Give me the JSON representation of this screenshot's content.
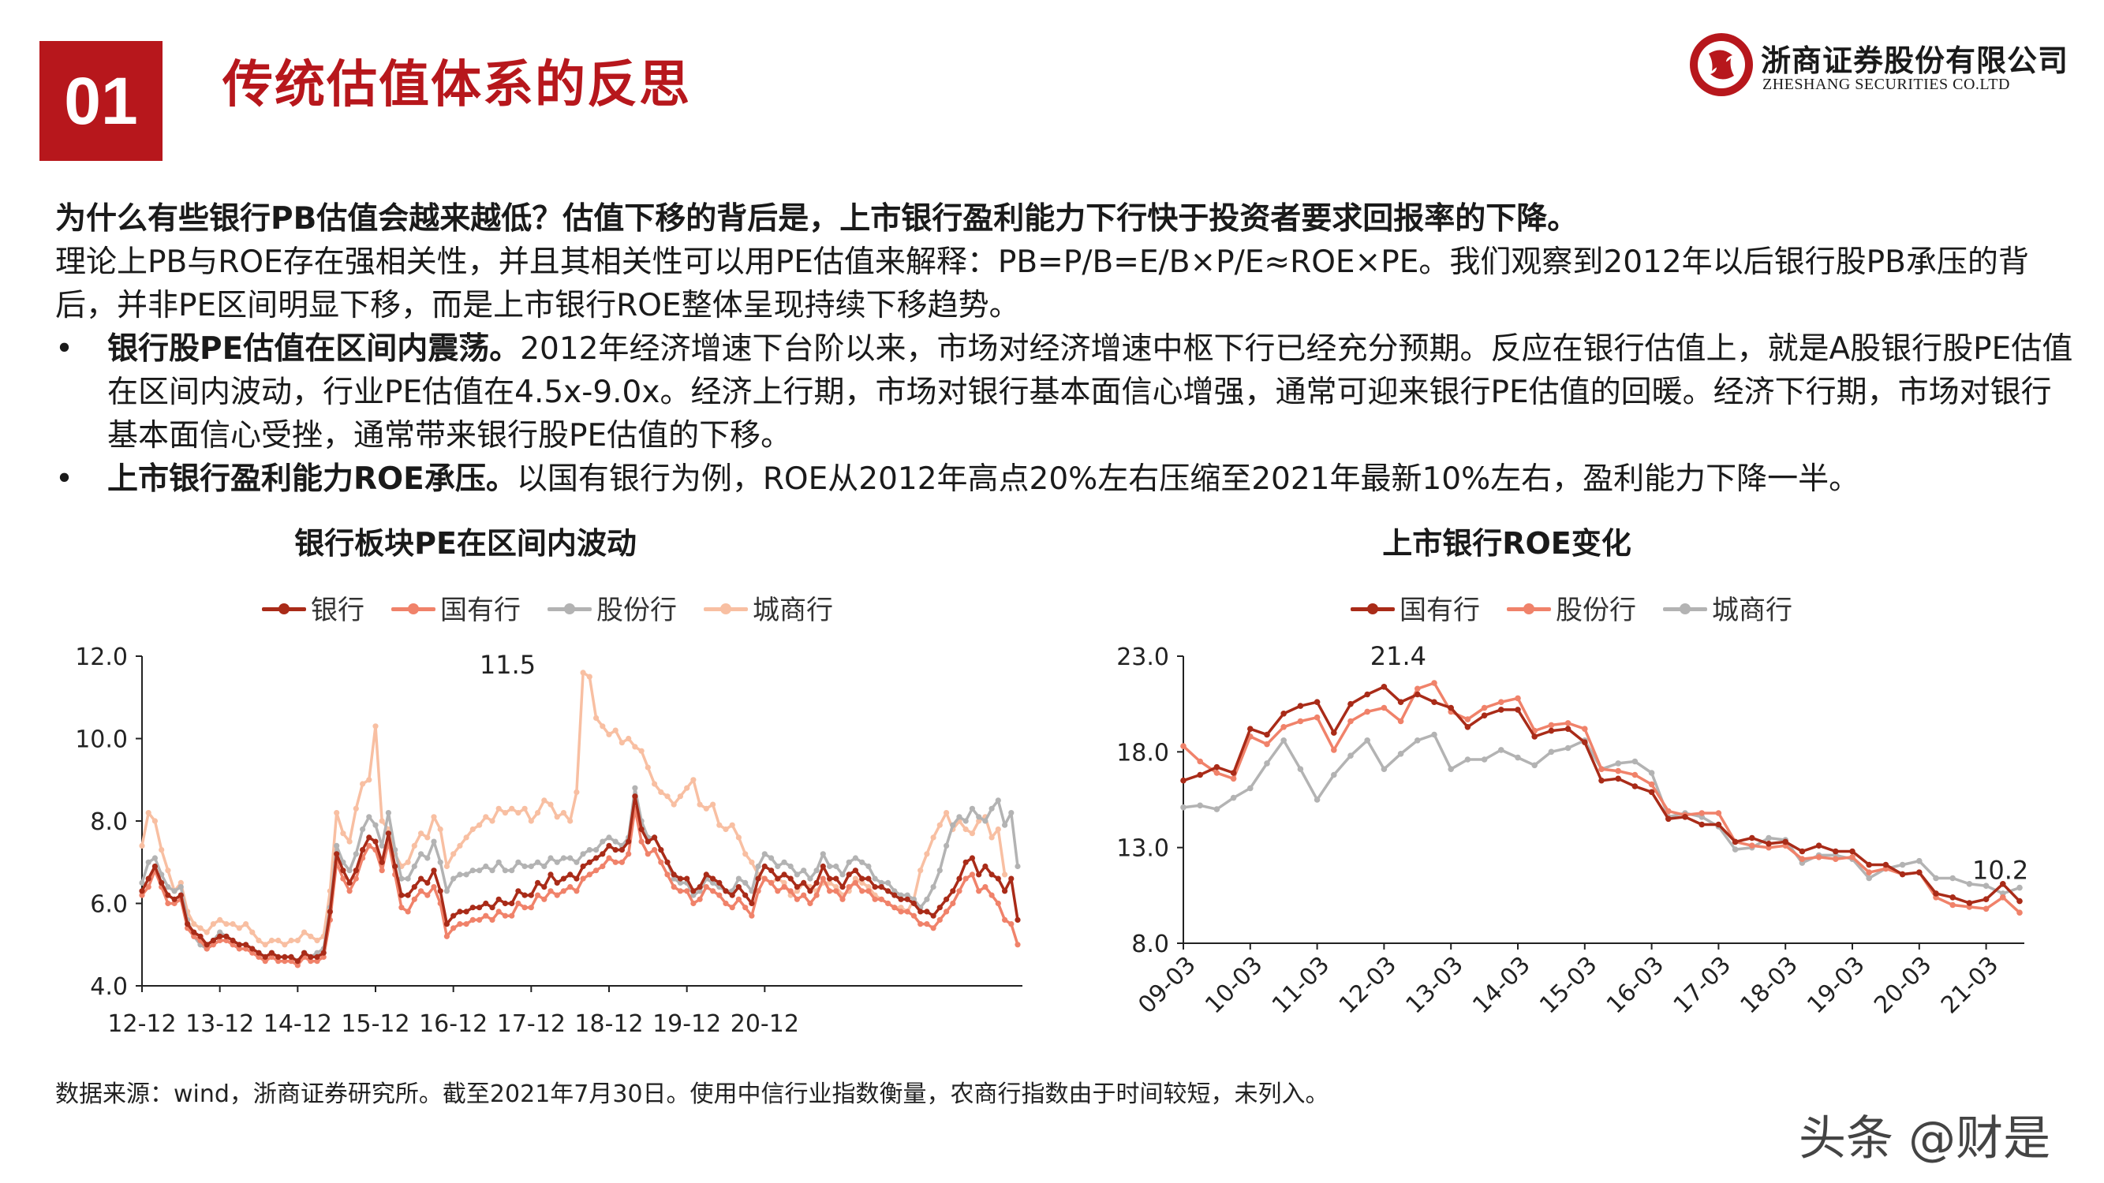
{
  "header": {
    "section_number": "01",
    "title": "传统估值体系的反思",
    "brand_color": "#b7171c"
  },
  "logo": {
    "company_cn": "浙商证券股份有限公司",
    "company_en": "ZHESHANG SECURITIES CO.LTD"
  },
  "body": {
    "lead": "为什么有些银行PB估值会越来越低？估值下移的背后是，上市银行盈利能力下行快于投资者要求回报率的下降。",
    "paragraph": "理论上PB与ROE存在强相关性，并且其相关性可以用PE估值来解释：PB=P/B=E/B×P/E≈ROE×PE。我们观察到2012年以后银行股PB承压的背后，并非PE区间明显下移，而是上市银行ROE整体呈现持续下移趋势。",
    "bullets": [
      {
        "marker": "•",
        "heading": "银行股PE估值在区间内震荡。",
        "text": "2012年经济增速下台阶以来，市场对经济增速中枢下行已经充分预期。反应在银行估值上，就是A股银行股PE估值在区间内波动，行业PE估值在4.5x-9.0x。经济上行期，市场对银行基本面信心增强，通常可迎来银行PE估值的回暖。经济下行期，市场对银行基本面信心受挫，通常带来银行股PE估值的下移。"
      },
      {
        "marker": "•",
        "heading": "上市银行盈利能力ROE承压。",
        "text": "以国有银行为例，ROE从2012年高点20%左右压缩至2021年最新10%左右，盈利能力下降一半。"
      }
    ]
  },
  "chart_data": [
    {
      "type": "line",
      "title": "银行板块PE在区间内波动",
      "xlabel": "",
      "ylabel": "",
      "ylim": [
        4.0,
        12.0
      ],
      "yticks": [
        "4.0",
        "6.0",
        "8.0",
        "10.0",
        "12.0"
      ],
      "xticks": [
        "12-12",
        "13-12",
        "14-12",
        "15-12",
        "16-12",
        "17-12",
        "18-12",
        "19-12",
        "20-12"
      ],
      "x_start": 2012.917,
      "x_step_years": 0.08333,
      "grid": false,
      "legend_position": "top",
      "annotations": [
        {
          "label": "11.5",
          "series": "城商行",
          "x": 2017.25,
          "y": 11.5
        }
      ],
      "series": [
        {
          "name": "银行",
          "color": "#a92b18",
          "values": [
            6.3,
            6.6,
            6.9,
            6.5,
            6.2,
            6.1,
            6.2,
            5.5,
            5.3,
            5.2,
            5.0,
            5.1,
            5.2,
            5.2,
            5.1,
            5.0,
            5.0,
            4.9,
            4.8,
            4.7,
            4.8,
            4.7,
            4.7,
            4.7,
            4.6,
            4.8,
            4.7,
            4.7,
            4.8,
            5.8,
            7.2,
            6.8,
            6.5,
            6.8,
            7.3,
            7.6,
            7.5,
            7.0,
            7.7,
            6.9,
            6.2,
            6.2,
            6.4,
            6.6,
            6.5,
            6.8,
            6.3,
            5.5,
            5.7,
            5.8,
            5.8,
            5.9,
            5.9,
            6.0,
            5.9,
            6.1,
            6.0,
            6.0,
            6.3,
            6.2,
            6.2,
            6.5,
            6.4,
            6.7,
            6.5,
            6.6,
            6.7,
            6.6,
            6.9,
            7.0,
            7.1,
            7.2,
            7.4,
            7.3,
            7.3,
            7.5,
            8.6,
            7.8,
            7.5,
            7.6,
            7.3,
            7.0,
            6.7,
            6.6,
            6.6,
            6.3,
            6.4,
            6.7,
            6.6,
            6.5,
            6.3,
            6.2,
            6.4,
            6.2,
            6.0,
            6.6,
            6.9,
            6.8,
            6.6,
            6.7,
            6.6,
            6.4,
            6.5,
            6.3,
            6.5,
            6.9,
            6.6,
            6.6,
            6.4,
            6.7,
            6.8,
            6.6,
            6.6,
            6.4,
            6.4,
            6.3,
            6.2,
            6.1,
            6.1,
            6.0,
            5.8,
            5.8,
            5.7,
            5.9,
            6.1,
            6.3,
            6.6,
            7.0,
            7.1,
            6.7,
            6.9,
            6.7,
            6.6,
            6.3,
            6.6,
            5.6
          ]
        },
        {
          "name": "国有行",
          "color": "#f0826a",
          "values": [
            6.2,
            6.4,
            6.8,
            6.4,
            6.0,
            6.0,
            6.1,
            5.4,
            5.2,
            5.1,
            4.9,
            5.0,
            5.1,
            5.1,
            5.0,
            4.9,
            4.9,
            4.8,
            4.7,
            4.6,
            4.7,
            4.6,
            4.6,
            4.6,
            4.5,
            4.7,
            4.6,
            4.6,
            4.7,
            5.6,
            7.0,
            6.6,
            6.3,
            6.6,
            7.1,
            7.4,
            7.3,
            6.8,
            7.5,
            6.7,
            5.9,
            5.8,
            6.1,
            6.3,
            6.2,
            6.4,
            6.0,
            5.2,
            5.4,
            5.5,
            5.5,
            5.6,
            5.6,
            5.7,
            5.6,
            5.8,
            5.7,
            5.7,
            6.0,
            5.9,
            5.9,
            6.2,
            6.1,
            6.3,
            6.2,
            6.3,
            6.4,
            6.3,
            6.6,
            6.7,
            6.8,
            6.9,
            7.1,
            7.0,
            7.0,
            7.2,
            8.3,
            7.5,
            7.2,
            7.3,
            7.0,
            6.7,
            6.4,
            6.3,
            6.3,
            6.0,
            6.1,
            6.4,
            6.3,
            6.2,
            6.0,
            5.9,
            6.1,
            5.9,
            5.7,
            6.3,
            6.6,
            6.5,
            6.3,
            6.4,
            6.3,
            6.1,
            6.2,
            6.0,
            6.2,
            6.6,
            6.3,
            6.3,
            6.1,
            6.4,
            6.5,
            6.3,
            6.3,
            6.1,
            6.1,
            6.0,
            5.9,
            5.8,
            5.8,
            5.7,
            5.5,
            5.5,
            5.4,
            5.6,
            5.8,
            6.0,
            6.3,
            6.6,
            6.7,
            6.3,
            6.4,
            6.2,
            6.0,
            5.6,
            5.5,
            5.0
          ]
        },
        {
          "name": "股份行",
          "color": "#b3b3b3",
          "values": [
            6.5,
            7.0,
            7.1,
            6.7,
            6.4,
            6.3,
            6.4,
            5.6,
            5.2,
            5.0,
            4.9,
            5.1,
            5.3,
            5.2,
            5.1,
            5.0,
            5.0,
            4.9,
            4.8,
            4.7,
            4.8,
            4.7,
            4.7,
            4.7,
            4.6,
            4.8,
            4.7,
            4.8,
            4.9,
            5.9,
            7.4,
            7.0,
            6.8,
            7.2,
            7.8,
            8.1,
            7.9,
            7.4,
            8.2,
            7.3,
            6.6,
            6.6,
            6.9,
            7.2,
            7.1,
            7.5,
            7.0,
            6.3,
            6.6,
            6.7,
            6.7,
            6.8,
            6.8,
            6.9,
            6.8,
            7.0,
            6.8,
            6.8,
            7.0,
            6.9,
            6.9,
            7.0,
            6.9,
            7.1,
            7.0,
            7.1,
            7.1,
            7.0,
            7.2,
            7.3,
            7.3,
            7.5,
            7.6,
            7.5,
            7.4,
            7.6,
            8.8,
            8.0,
            7.6,
            7.6,
            7.3,
            7.0,
            6.6,
            6.5,
            6.5,
            6.2,
            6.3,
            6.6,
            6.5,
            6.4,
            6.3,
            6.3,
            6.6,
            6.5,
            6.3,
            6.9,
            7.2,
            7.1,
            6.9,
            7.0,
            6.9,
            6.7,
            6.8,
            6.6,
            6.8,
            7.2,
            6.9,
            6.9,
            6.7,
            7.0,
            7.1,
            7.0,
            6.9,
            6.6,
            6.5,
            6.5,
            6.3,
            6.2,
            6.2,
            6.1,
            5.9,
            6.1,
            6.4,
            6.8,
            7.4,
            7.9,
            8.1,
            8.0,
            8.3,
            8.1,
            8.0,
            8.3,
            8.5,
            7.9,
            8.2,
            6.9
          ]
        },
        {
          "name": "城商行",
          "color": "#f8bfa2",
          "values": [
            7.4,
            8.2,
            8.0,
            7.3,
            6.8,
            6.3,
            6.5,
            5.8,
            5.5,
            5.4,
            5.3,
            5.5,
            5.6,
            5.5,
            5.5,
            5.4,
            5.5,
            5.3,
            5.1,
            5.0,
            5.1,
            5.1,
            5.0,
            5.1,
            5.1,
            5.3,
            5.2,
            5.1,
            5.2,
            6.3,
            8.2,
            7.7,
            7.5,
            8.3,
            8.9,
            9.0,
            10.3,
            8.0,
            7.8,
            7.2,
            6.9,
            7.0,
            7.4,
            7.7,
            7.6,
            8.1,
            7.8,
            6.9,
            7.2,
            7.4,
            7.6,
            7.8,
            7.9,
            8.1,
            8.0,
            8.3,
            8.2,
            8.3,
            8.2,
            8.3,
            8.0,
            8.2,
            8.5,
            8.4,
            8.1,
            8.2,
            8.0,
            8.7,
            11.6,
            11.5,
            10.5,
            10.3,
            10.1,
            10.2,
            9.9,
            10.0,
            9.8,
            9.7,
            9.3,
            8.9,
            8.7,
            8.6,
            8.4,
            8.6,
            8.8,
            9.0,
            8.4,
            8.3,
            8.4,
            7.9,
            7.8,
            7.9,
            7.6,
            7.2,
            7.0,
            6.7,
            6.6,
            6.5,
            6.6,
            6.5,
            6.2,
            6.3,
            6.5,
            6.4,
            6.3,
            6.5,
            6.5,
            6.4,
            6.2,
            6.3,
            6.6,
            6.5,
            6.4,
            6.2,
            6.1,
            6.0,
            5.9,
            5.9,
            5.8,
            6.1,
            6.8,
            7.2,
            7.6,
            7.9,
            8.2,
            7.8,
            8.0,
            7.8,
            7.7,
            8.0,
            8.1,
            7.6,
            7.8,
            6.7
          ]
        }
      ]
    },
    {
      "type": "line",
      "title": "上市银行ROE变化",
      "xlabel": "",
      "ylabel": "",
      "ylim": [
        8.0,
        23.0
      ],
      "yticks": [
        "8.0",
        "13.0",
        "18.0",
        "23.0"
      ],
      "xticks": [
        "09-03",
        "10-03",
        "11-03",
        "12-03",
        "13-03",
        "14-03",
        "15-03",
        "16-03",
        "17-03",
        "18-03",
        "19-03",
        "20-03",
        "21-03"
      ],
      "x_start": 2009.0,
      "x_step_years": 0.25,
      "grid": false,
      "legend_position": "top",
      "annotations": [
        {
          "label": "21.4",
          "series": "国有行",
          "x": 2012.0,
          "y": 21.4
        },
        {
          "label": "10.2",
          "series": "国有行",
          "x": 2021.0,
          "y": 10.2
        }
      ],
      "series": [
        {
          "name": "国有行",
          "color": "#a92b18",
          "values": [
            16.5,
            16.8,
            17.2,
            16.9,
            19.2,
            18.9,
            20.0,
            20.4,
            20.6,
            19.0,
            20.5,
            21.0,
            21.4,
            20.6,
            21.0,
            20.6,
            20.3,
            19.3,
            19.9,
            20.2,
            20.2,
            18.8,
            19.1,
            19.2,
            18.5,
            16.5,
            16.6,
            16.2,
            15.9,
            14.5,
            14.6,
            14.2,
            14.2,
            13.3,
            13.5,
            13.2,
            13.3,
            12.8,
            13.1,
            12.8,
            12.8,
            12.1,
            12.1,
            11.6,
            11.7,
            10.6,
            10.4,
            10.1,
            10.3,
            11.1,
            10.2
          ]
        },
        {
          "name": "股份行",
          "color": "#f0826a",
          "values": [
            18.3,
            17.5,
            16.9,
            16.6,
            18.8,
            18.4,
            19.3,
            19.6,
            19.8,
            18.1,
            19.6,
            20.1,
            20.3,
            19.6,
            21.3,
            21.6,
            20.1,
            19.7,
            20.3,
            20.6,
            20.8,
            19.1,
            19.4,
            19.5,
            19.2,
            17.1,
            17.0,
            16.8,
            16.3,
            14.9,
            14.7,
            14.8,
            14.8,
            13.3,
            13.1,
            13.0,
            13.1,
            12.4,
            12.5,
            12.4,
            12.5,
            11.7,
            11.9,
            11.6,
            11.7,
            10.4,
            10.0,
            9.9,
            9.8,
            10.4,
            9.6
          ]
        },
        {
          "name": "城商行",
          "color": "#b3b3b3",
          "values": [
            15.1,
            15.2,
            15.0,
            15.6,
            16.1,
            17.4,
            18.6,
            17.1,
            15.5,
            16.8,
            17.8,
            18.6,
            17.1,
            17.9,
            18.6,
            18.9,
            17.1,
            17.6,
            17.6,
            18.1,
            17.7,
            17.3,
            18.0,
            18.2,
            18.6,
            17.1,
            17.4,
            17.5,
            16.9,
            14.6,
            14.8,
            14.6,
            14.1,
            12.9,
            13.0,
            13.5,
            13.4,
            12.2,
            12.6,
            12.6,
            12.4,
            11.4,
            11.9,
            12.1,
            12.3,
            11.4,
            11.4,
            11.1,
            11.0,
            10.6,
            10.9
          ]
        }
      ]
    }
  ],
  "footnote": "数据来源：wind，浙商证券研究所。截至2021年7月30日。使用中信行业指数衡量，农商行指数由于时间较短，未列入。",
  "watermark": "头条 @财是"
}
